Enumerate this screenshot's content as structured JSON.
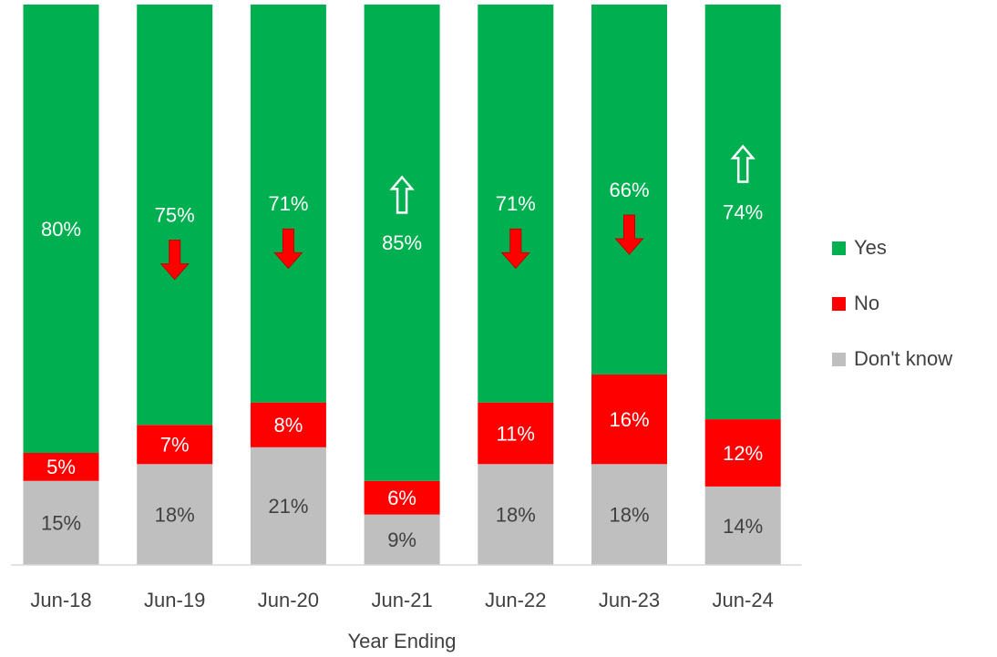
{
  "chart_data": {
    "type": "stacked_bar",
    "x_label": "Year Ending",
    "categories": [
      "Jun-18",
      "Jun-19",
      "Jun-20",
      "Jun-21",
      "Jun-22",
      "Jun-23",
      "Jun-24"
    ],
    "series": [
      {
        "name": "Don't know",
        "color": "#bfbfbf",
        "label_color": "#404040",
        "values": [
          15,
          18,
          21,
          9,
          18,
          18,
          14
        ],
        "value_labels": [
          "15%",
          "18%",
          "21%",
          "9%",
          "18%",
          "18%",
          "14%"
        ]
      },
      {
        "name": "No",
        "color": "#ff0000",
        "label_color": "#ffffff",
        "values": [
          5,
          7,
          8,
          6,
          11,
          16,
          12
        ],
        "value_labels": [
          "5%",
          "7%",
          "8%",
          "6%",
          "11%",
          "16%",
          "12%"
        ]
      },
      {
        "name": "Yes",
        "color": "#00b050",
        "label_color": "#ffffff",
        "values": [
          80,
          75,
          71,
          85,
          71,
          66,
          74
        ],
        "value_labels": [
          "80%",
          "75%",
          "71%",
          "85%",
          "71%",
          "66%",
          "74%"
        ]
      }
    ],
    "changes": [
      null,
      "down",
      "down",
      "up",
      "down",
      "down",
      "up"
    ],
    "ylim": [
      0,
      100
    ],
    "legend": "right"
  }
}
